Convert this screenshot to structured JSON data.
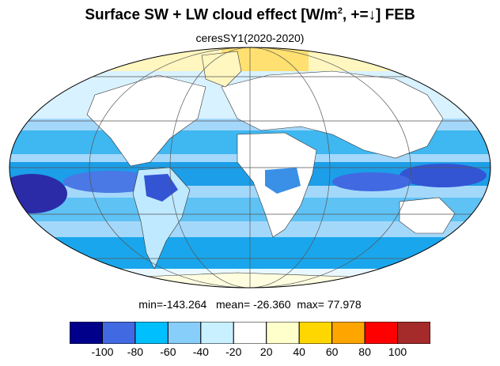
{
  "header": {
    "title_prefix": "Surface SW + LW cloud effect [W/m",
    "title_sup": "2",
    "title_suffix": ", +=↓]  FEB",
    "subtitle": "ceresSY1(2020-2020)"
  },
  "stats": {
    "min_label": "min=",
    "min_value": "-143.264",
    "mean_label": "mean=",
    "mean_value": "-26.360",
    "max_label": "max=",
    "max_value": "77.978"
  },
  "colorbar": {
    "colors": [
      "#00008b",
      "#4169e1",
      "#00bfff",
      "#87cefa",
      "#c8f0ff",
      "#ffffff",
      "#ffffcc",
      "#ffd700",
      "#ffa500",
      "#ff0000",
      "#a52a2a"
    ],
    "tick_labels": [
      "-100",
      "-80",
      "-60",
      "-40",
      "-20",
      "20",
      "40",
      "60",
      "80",
      "100"
    ]
  },
  "map": {
    "projection": "Mollweide",
    "ocean_color": "#00bfff",
    "land_color": "#ffffff",
    "gridline_color": "#555555"
  }
}
